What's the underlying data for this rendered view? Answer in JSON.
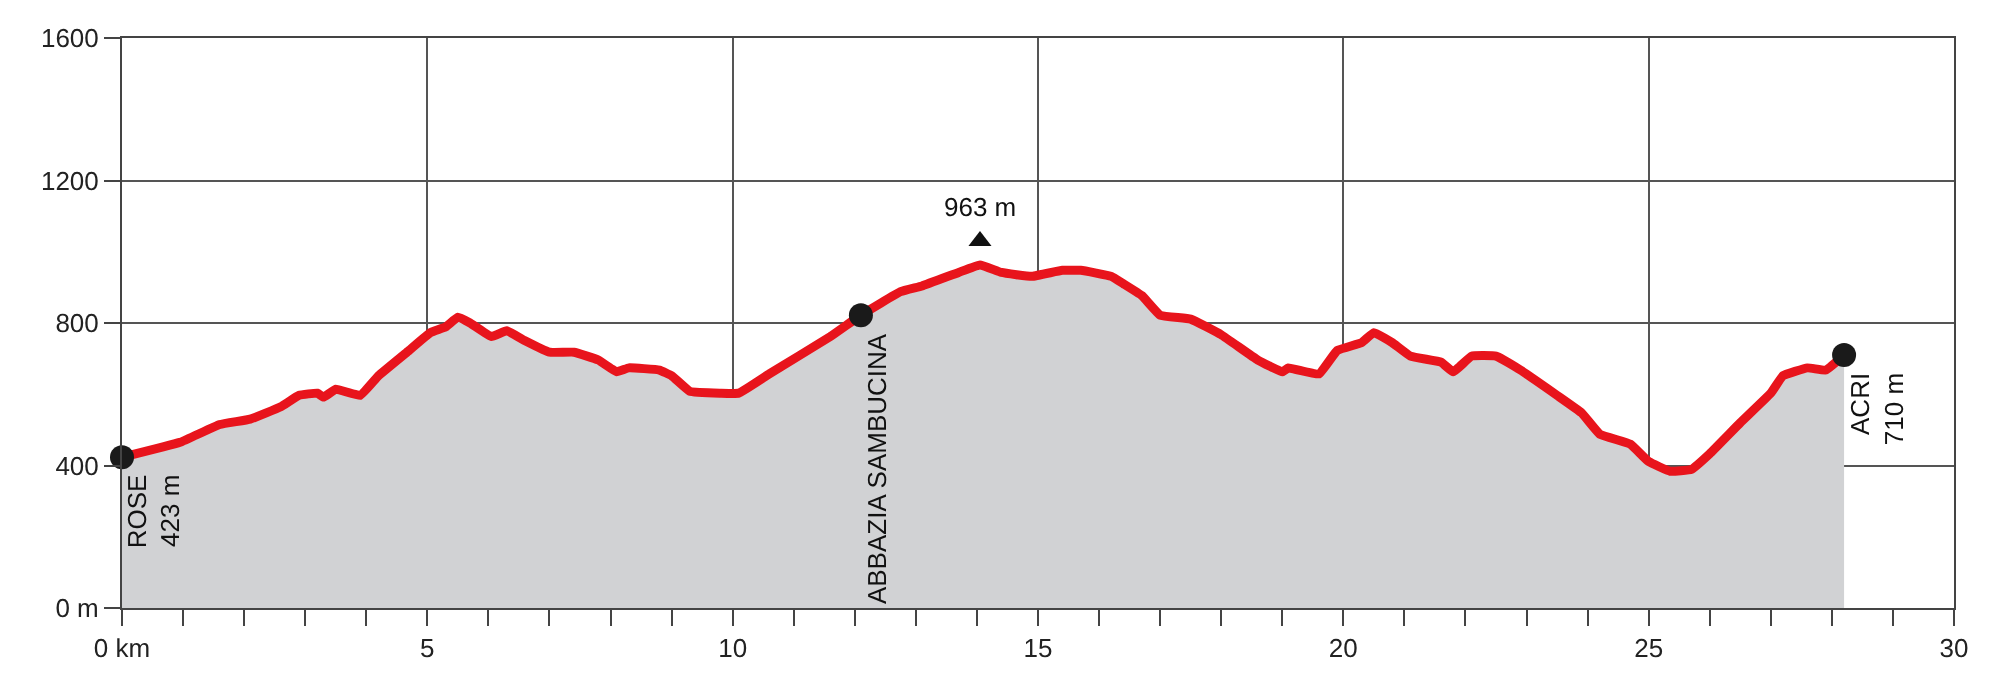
{
  "chart_data": {
    "type": "area",
    "x": [
      0,
      0.95,
      1.6,
      2.1,
      2.6,
      2.9,
      3.2,
      3.3,
      3.5,
      3.9,
      4.2,
      4.7,
      5.05,
      5.3,
      5.5,
      5.7,
      6.05,
      6.3,
      6.6,
      7.0,
      7.4,
      7.8,
      8.1,
      8.3,
      8.8,
      9.0,
      9.3,
      9.8,
      10.1,
      10.6,
      11.6,
      12.1,
      12.75,
      13.1,
      13.7,
      14.05,
      14.4,
      14.9,
      15.4,
      15.7,
      16.2,
      16.4,
      16.7,
      17.0,
      17.5,
      18.0,
      18.6,
      19.0,
      19.1,
      19.6,
      19.9,
      20.3,
      20.5,
      20.8,
      21.1,
      21.6,
      21.8,
      22.1,
      22.5,
      22.9,
      23.5,
      23.9,
      24.2,
      24.7,
      25.0,
      25.35,
      25.7,
      26.0,
      26.5,
      27.0,
      27.2,
      27.6,
      27.9,
      28.2
    ],
    "series": [
      {
        "color": "#e8141c",
        "values": [
          423,
          465,
          515,
          530,
          565,
          597,
          603,
          592,
          614,
          597,
          652,
          723,
          773,
          789,
          816,
          800,
          762,
          778,
          750,
          718,
          718,
          696,
          663,
          674,
          668,
          652,
          608,
          603,
          603,
          657,
          762,
          822,
          888,
          904,
          942,
          963,
          942,
          931,
          948,
          948,
          931,
          910,
          877,
          822,
          811,
          767,
          696,
          663,
          674,
          657,
          723,
          745,
          773,
          745,
          707,
          690,
          663,
          707,
          707,
          668,
          597,
          548,
          488,
          460,
          411,
          384,
          389,
          433,
          520,
          603,
          652,
          674,
          668,
          710
        ]
      },
      {
        "type": "scatter",
        "color": "#1a1a1a",
        "marker": "circle",
        "x": [
          0,
          12.1,
          28.2
        ],
        "values": [
          423,
          822,
          710
        ]
      },
      {
        "type": "scatter",
        "color": "#111111",
        "marker": "triangle",
        "x": [
          14.05
        ],
        "values": [
          1030
        ]
      }
    ],
    "xlim": [
      0,
      30
    ],
    "ylim": [
      0,
      1600
    ],
    "xticks": [
      {
        "value": 0,
        "label": "0 km"
      },
      {
        "value": 1,
        "label": null
      },
      {
        "value": 2,
        "label": null
      },
      {
        "value": 3,
        "label": null
      },
      {
        "value": 4,
        "label": null
      },
      5,
      {
        "value": 6,
        "label": null
      },
      {
        "value": 7,
        "label": null
      },
      {
        "value": 8,
        "label": null
      },
      {
        "value": 9,
        "label": null
      },
      10,
      {
        "value": 11,
        "label": null
      },
      {
        "value": 12,
        "label": null
      },
      {
        "value": 13,
        "label": null
      },
      {
        "value": 14,
        "label": null
      },
      15,
      {
        "value": 16,
        "label": null
      },
      {
        "value": 17,
        "label": null
      },
      {
        "value": 18,
        "label": null
      },
      {
        "value": 19,
        "label": null
      },
      20,
      {
        "value": 21,
        "label": null
      },
      {
        "value": 22,
        "label": null
      },
      {
        "value": 23,
        "label": null
      },
      {
        "value": 24,
        "label": null
      },
      25,
      {
        "value": 26,
        "label": null
      },
      {
        "value": 27,
        "label": null
      },
      {
        "value": 28,
        "label": null
      },
      {
        "value": 29,
        "label": null
      },
      30
    ],
    "yticks": [
      {
        "value": 0,
        "label": "0 m"
      },
      400,
      800,
      1200,
      1600
    ],
    "grid": true,
    "annotations": [
      {
        "text": "ROSE\n423 m",
        "x": 0,
        "y": 423
      },
      {
        "text": "ABBAZIA SAMBUCINA",
        "x": 12.1,
        "y": 822
      },
      {
        "text": "ACRI\n710 m",
        "x": 28.2,
        "y": 710
      },
      {
        "text": "963 m",
        "x": 14.05,
        "y": 963
      }
    ]
  }
}
